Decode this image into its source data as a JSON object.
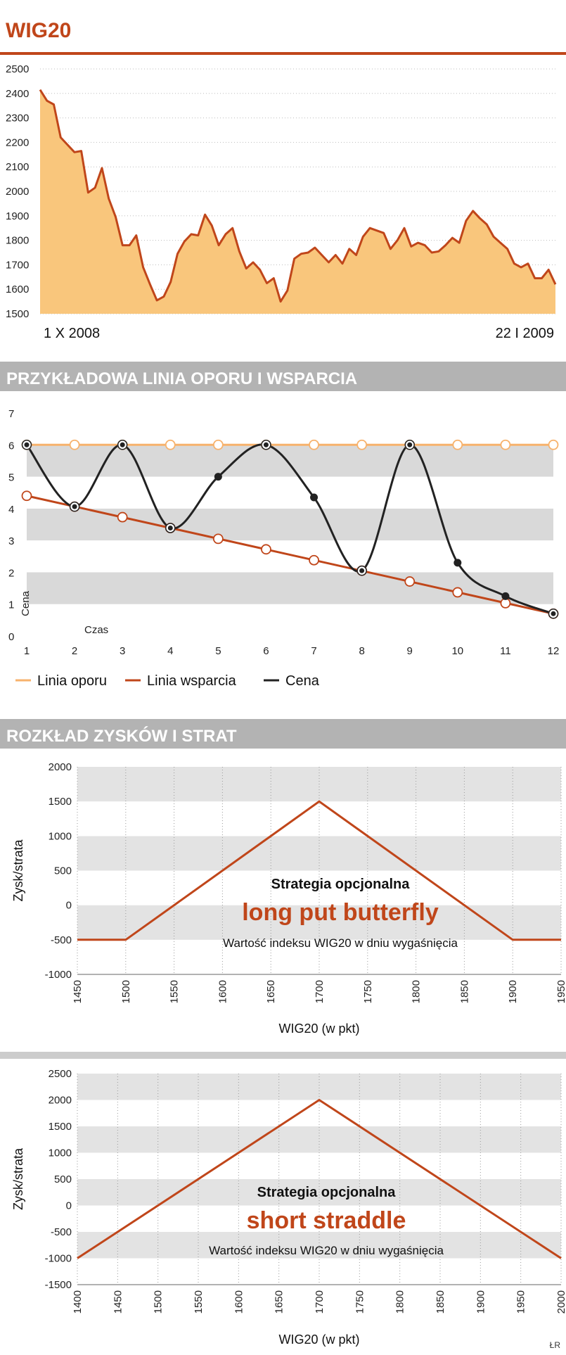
{
  "page": {
    "title": "WIG20",
    "credit": "ŁR",
    "colors": {
      "accent": "#c0461a",
      "area": "#f9c67c",
      "resistance": "#f7b26c",
      "support": "#c0461a",
      "price": "#222222",
      "band": "#d9d9d9",
      "banner": "#b3b3b3"
    }
  },
  "chart_data": [
    {
      "type": "area",
      "title": "WIG20",
      "x_start_label": "1 X 2008",
      "x_end_label": "22 I 2009",
      "ylim": [
        1500,
        2500
      ],
      "yticks": [
        1500,
        1600,
        1700,
        1800,
        1900,
        2000,
        2100,
        2200,
        2300,
        2400,
        2500
      ],
      "values": [
        2415,
        2370,
        2355,
        2220,
        2190,
        2160,
        2165,
        1995,
        2015,
        2095,
        1970,
        1895,
        1780,
        1780,
        1820,
        1690,
        1620,
        1555,
        1570,
        1630,
        1745,
        1795,
        1825,
        1820,
        1905,
        1860,
        1780,
        1825,
        1850,
        1755,
        1685,
        1710,
        1680,
        1625,
        1645,
        1550,
        1595,
        1725,
        1745,
        1750,
        1770,
        1740,
        1710,
        1740,
        1705,
        1765,
        1740,
        1815,
        1850,
        1840,
        1830,
        1765,
        1800,
        1850,
        1775,
        1790,
        1780,
        1750,
        1755,
        1780,
        1810,
        1790,
        1880,
        1920,
        1890,
        1865,
        1815,
        1790,
        1765,
        1705,
        1690,
        1705,
        1645,
        1645,
        1680,
        1620
      ]
    },
    {
      "type": "line",
      "title": "PRZYKŁADOWA LINIA OPORU I WSPARCIA",
      "xlabel": "Czas",
      "ylabel": "Cena",
      "x": [
        1,
        2,
        3,
        4,
        5,
        6,
        7,
        8,
        9,
        10,
        11,
        12
      ],
      "xlim": [
        1,
        12
      ],
      "ylim": [
        0,
        7
      ],
      "yticks": [
        0,
        1,
        2,
        3,
        4,
        5,
        6,
        7
      ],
      "legend_position": "bottom-left",
      "series": [
        {
          "name": "Linia oporu",
          "values": [
            6,
            6,
            6,
            6,
            6,
            6,
            6,
            6,
            6,
            6,
            6,
            6
          ]
        },
        {
          "name": "Linia wsparcia",
          "values": [
            4.4,
            4.06,
            3.73,
            3.39,
            3.05,
            2.72,
            2.38,
            2.05,
            1.71,
            1.37,
            1.03,
            0.7
          ]
        },
        {
          "name": "Cena",
          "values": [
            6,
            4.06,
            6,
            3.39,
            5,
            6,
            4.35,
            2.05,
            6,
            2.3,
            1.25,
            0.7
          ]
        }
      ]
    },
    {
      "type": "line",
      "title": "ROZKŁAD ZYSKÓW I STRAT",
      "strategy_caption": "Strategia opcjonalna",
      "strategy_name": "long put butterfly",
      "annotation": "Wartość indeksu WIG20 w dniu wygaśnięcia",
      "xlabel": "WIG20 (w pkt)",
      "ylabel": "Zysk/strata",
      "xlim": [
        1450,
        1950
      ],
      "xticks": [
        1450,
        1500,
        1550,
        1600,
        1650,
        1700,
        1750,
        1800,
        1850,
        1900,
        1950
      ],
      "ylim": [
        -1000,
        2000
      ],
      "yticks": [
        -1000,
        -500,
        0,
        500,
        1000,
        1500,
        2000
      ],
      "x": [
        1450,
        1500,
        1700,
        1900,
        1950
      ],
      "values": [
        -500,
        -500,
        1500,
        -500,
        -500
      ]
    },
    {
      "type": "line",
      "strategy_caption": "Strategia opcjonalna",
      "strategy_name": "short straddle",
      "annotation": "Wartość indeksu WIG20 w dniu wygaśnięcia",
      "xlabel": "WIG20 (w pkt)",
      "ylabel": "Zysk/strata",
      "xlim": [
        1400,
        2000
      ],
      "xticks": [
        1400,
        1450,
        1500,
        1550,
        1600,
        1650,
        1700,
        1750,
        1800,
        1850,
        1900,
        1950,
        2000
      ],
      "ylim": [
        -1500,
        2500
      ],
      "yticks": [
        -1500,
        -1000,
        -500,
        0,
        500,
        1000,
        1500,
        2000,
        2500
      ],
      "x": [
        1400,
        1700,
        2000
      ],
      "values": [
        -1000,
        2000,
        -1000
      ]
    }
  ]
}
